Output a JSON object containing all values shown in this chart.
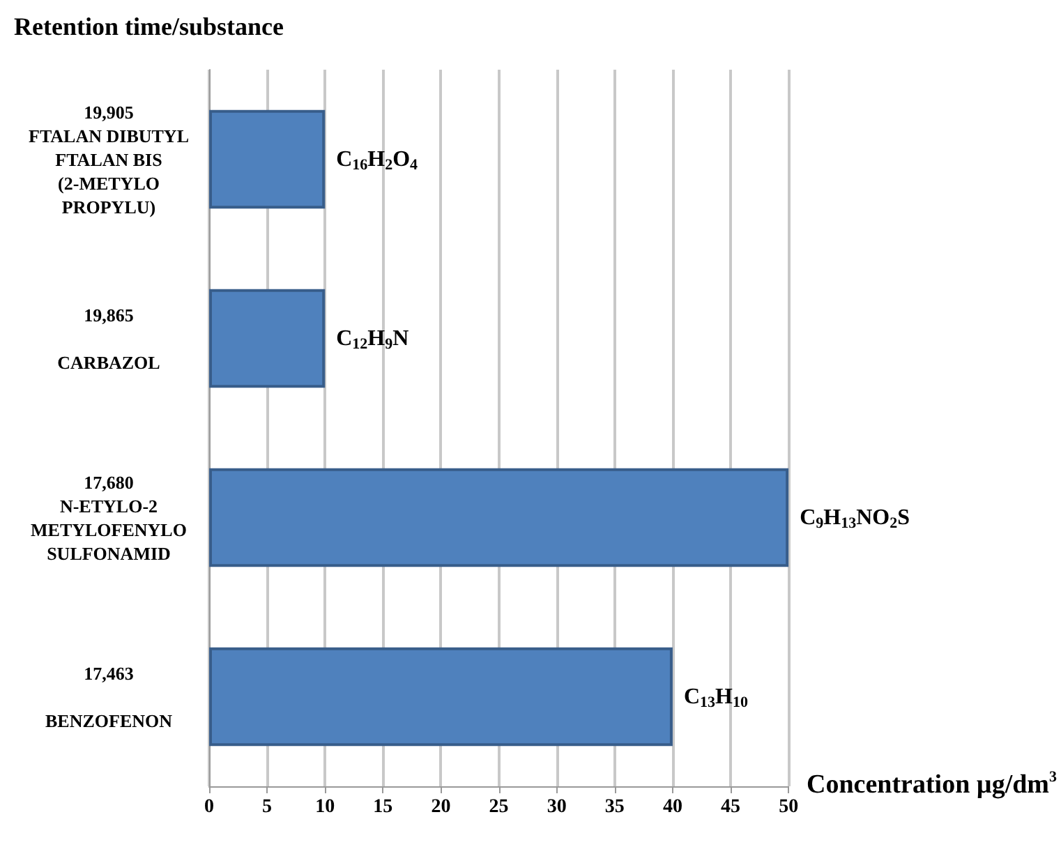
{
  "chart_data": {
    "type": "bar",
    "orientation": "horizontal",
    "ylabel": "Retention time/substance",
    "xlabel": "Concentration µg/dm$^{3}$",
    "categories": [
      "19,905\nFTALAN DIBUTYL\nFTALAN BIS\n(2-METYLO\nPROPYLU)",
      "19,865\n\nCARBAZOL",
      "17,680\nN-ETYLO-2\nMETYLOFENYLO\nSULFONAMID",
      "17,463\n\nBENZOFENON"
    ],
    "values": [
      10,
      10,
      50,
      40
    ],
    "value_labels": [
      "C$_{16}$H$_{2}$O$_{4}$",
      "C$_{12}$H$_{9}$N",
      "C$_{9}$H$_{13}$NO$_{2}$S",
      "C$_{13}$H$_{10}$"
    ],
    "color": "#4f81bd",
    "xlim": [
      0,
      50
    ],
    "xticks": [
      0,
      5,
      10,
      15,
      20,
      25,
      30,
      35,
      40,
      45,
      50
    ],
    "grid": "x"
  }
}
